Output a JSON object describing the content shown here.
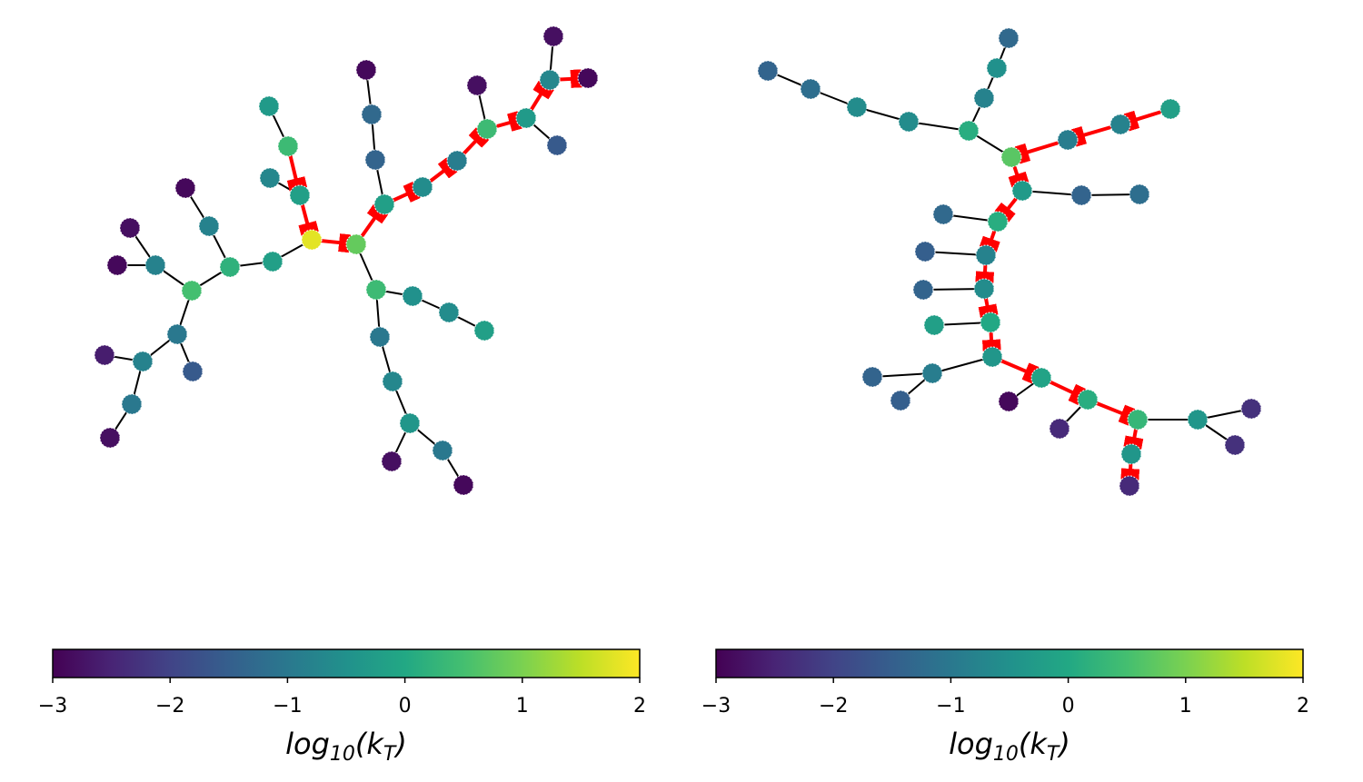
{
  "colormap": "viridis",
  "graphs": [
    {
      "node_values": [
        1.8,
        0.8,
        -0.2,
        0.4,
        -0.3,
        -0.7,
        -0.2,
        0.2,
        -0.8,
        -2.9,
        0.5,
        -0.8,
        -2.8,
        -2.9,
        -1.0,
        -1.6,
        -0.8,
        -2.6,
        -1.0,
        -2.8,
        -0.2,
        -1.4,
        -1.3,
        -2.9,
        -0.6,
        -0.9,
        0.4,
        -2.8,
        -0.3,
        -1.6,
        -0.7,
        -2.8,
        -2.9,
        0.4,
        -0.5,
        -0.6,
        -0.2,
        -1.0,
        -0.7,
        -0.4,
        -2.8,
        -1.0,
        -2.9
      ],
      "colorbar": {
        "clim": [
          -3,
          2
        ],
        "ticks": [
          {
            "value": -3,
            "label": "−3"
          },
          {
            "value": -2,
            "label": "−2"
          },
          {
            "value": -1,
            "label": "−1"
          },
          0,
          1,
          2
        ],
        "label": [
          "log",
          "10",
          "(k",
          "T",
          ")"
        ]
      }
    },
    {
      "node_values": [
        -1.3,
        -0.5,
        -0.8,
        0.1,
        -1.4,
        -1.2,
        -0.6,
        -0.6,
        0.7,
        -0.9,
        -0.8,
        -0.2,
        -0.3,
        -1.4,
        -1.2,
        0.1,
        -1.3,
        -0.8,
        -1.5,
        -0.6,
        -1.4,
        0.0,
        -0.2,
        -0.4,
        -0.9,
        -1.4,
        -1.5,
        -0.1,
        -2.9,
        0.1,
        -2.4,
        0.3,
        -0.4,
        -2.3,
        -2.3,
        -0.4,
        -2.4
      ],
      "colorbar": {
        "clim": [
          -3,
          2
        ],
        "ticks": [
          {
            "value": -3,
            "label": "−3"
          },
          {
            "value": -2,
            "label": "−2"
          },
          {
            "value": -1,
            "label": "−1"
          },
          0,
          1,
          2
        ],
        "label": [
          "log",
          "10",
          "(k",
          "T",
          ")"
        ]
      }
    }
  ]
}
